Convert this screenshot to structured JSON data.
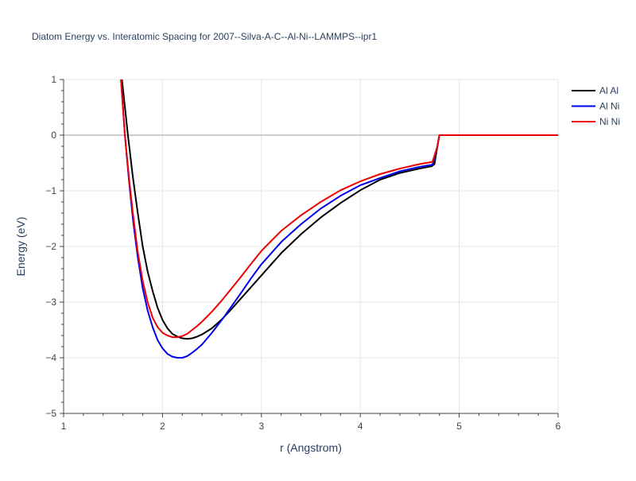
{
  "chart_data": {
    "type": "line",
    "title": "Diatom Energy vs. Interatomic Spacing for 2007--Silva-A-C--Al-Ni--LAMMPS--ipr1",
    "xlabel": "r (Angstrom)",
    "ylabel": "Energy (eV)",
    "xlim": [
      1,
      6
    ],
    "ylim": [
      -5,
      1
    ],
    "x_ticks": [
      1,
      2,
      3,
      4,
      5,
      6
    ],
    "x_tick_labels": [
      "1",
      "2",
      "3",
      "4",
      "5",
      "6"
    ],
    "y_ticks": [
      1,
      0,
      -1,
      -2,
      -3,
      -4,
      -5
    ],
    "y_tick_labels": [
      "1",
      "0",
      "−1",
      "−2",
      "−3",
      "−4",
      "−5"
    ],
    "grid": true,
    "legend_position": "top-right",
    "series": [
      {
        "name": "Al Al",
        "color": "#000000",
        "x": [
          1.59,
          1.65,
          1.7,
          1.75,
          1.8,
          1.85,
          1.9,
          1.95,
          2.0,
          2.05,
          2.1,
          2.15,
          2.2,
          2.25,
          2.3,
          2.35,
          2.4,
          2.5,
          2.6,
          2.7,
          2.8,
          2.9,
          3.0,
          3.2,
          3.4,
          3.6,
          3.8,
          4.0,
          4.2,
          4.4,
          4.6,
          4.72,
          4.75,
          4.78,
          4.8,
          5.0,
          5.5,
          6.0
        ],
        "y": [
          1.0,
          0.0,
          -0.75,
          -1.4,
          -2.0,
          -2.45,
          -2.8,
          -3.1,
          -3.32,
          -3.47,
          -3.57,
          -3.62,
          -3.65,
          -3.66,
          -3.65,
          -3.62,
          -3.58,
          -3.47,
          -3.31,
          -3.12,
          -2.92,
          -2.72,
          -2.52,
          -2.12,
          -1.78,
          -1.48,
          -1.22,
          -0.99,
          -0.8,
          -0.68,
          -0.6,
          -0.56,
          -0.52,
          -0.2,
          0.0,
          0.0,
          0.0,
          0.0
        ]
      },
      {
        "name": "Al Ni",
        "color": "#0000ee",
        "x": [
          1.58,
          1.62,
          1.66,
          1.7,
          1.75,
          1.8,
          1.85,
          1.9,
          1.95,
          2.0,
          2.05,
          2.1,
          2.15,
          2.2,
          2.25,
          2.3,
          2.35,
          2.4,
          2.5,
          2.6,
          2.7,
          2.8,
          2.9,
          3.0,
          3.2,
          3.4,
          3.6,
          3.8,
          4.0,
          4.2,
          4.4,
          4.6,
          4.73,
          4.78,
          4.8,
          5.0,
          5.5,
          6.0
        ],
        "y": [
          1.0,
          0.0,
          -0.8,
          -1.5,
          -2.2,
          -2.75,
          -3.15,
          -3.45,
          -3.68,
          -3.83,
          -3.93,
          -3.98,
          -4.0,
          -4.0,
          -3.97,
          -3.91,
          -3.84,
          -3.76,
          -3.55,
          -3.32,
          -3.07,
          -2.82,
          -2.56,
          -2.32,
          -1.92,
          -1.6,
          -1.32,
          -1.09,
          -0.9,
          -0.77,
          -0.65,
          -0.57,
          -0.53,
          -0.2,
          0.0,
          0.0,
          0.0,
          0.0
        ]
      },
      {
        "name": "Ni Ni",
        "color": "#ee0000",
        "x": [
          1.58,
          1.62,
          1.66,
          1.7,
          1.75,
          1.8,
          1.85,
          1.9,
          1.95,
          2.0,
          2.05,
          2.1,
          2.15,
          2.2,
          2.25,
          2.3,
          2.35,
          2.4,
          2.5,
          2.6,
          2.7,
          2.8,
          2.9,
          3.0,
          3.2,
          3.4,
          3.6,
          3.8,
          4.0,
          4.2,
          4.4,
          4.6,
          4.73,
          4.78,
          4.8,
          5.0,
          5.5,
          6.0
        ],
        "y": [
          1.0,
          0.0,
          -0.75,
          -1.4,
          -2.1,
          -2.62,
          -3.0,
          -3.28,
          -3.45,
          -3.55,
          -3.6,
          -3.63,
          -3.63,
          -3.61,
          -3.57,
          -3.5,
          -3.43,
          -3.35,
          -3.17,
          -2.97,
          -2.75,
          -2.53,
          -2.3,
          -2.08,
          -1.72,
          -1.44,
          -1.2,
          -0.99,
          -0.83,
          -0.7,
          -0.6,
          -0.52,
          -0.48,
          -0.2,
          0.0,
          0.0,
          0.0,
          0.0
        ]
      }
    ]
  }
}
